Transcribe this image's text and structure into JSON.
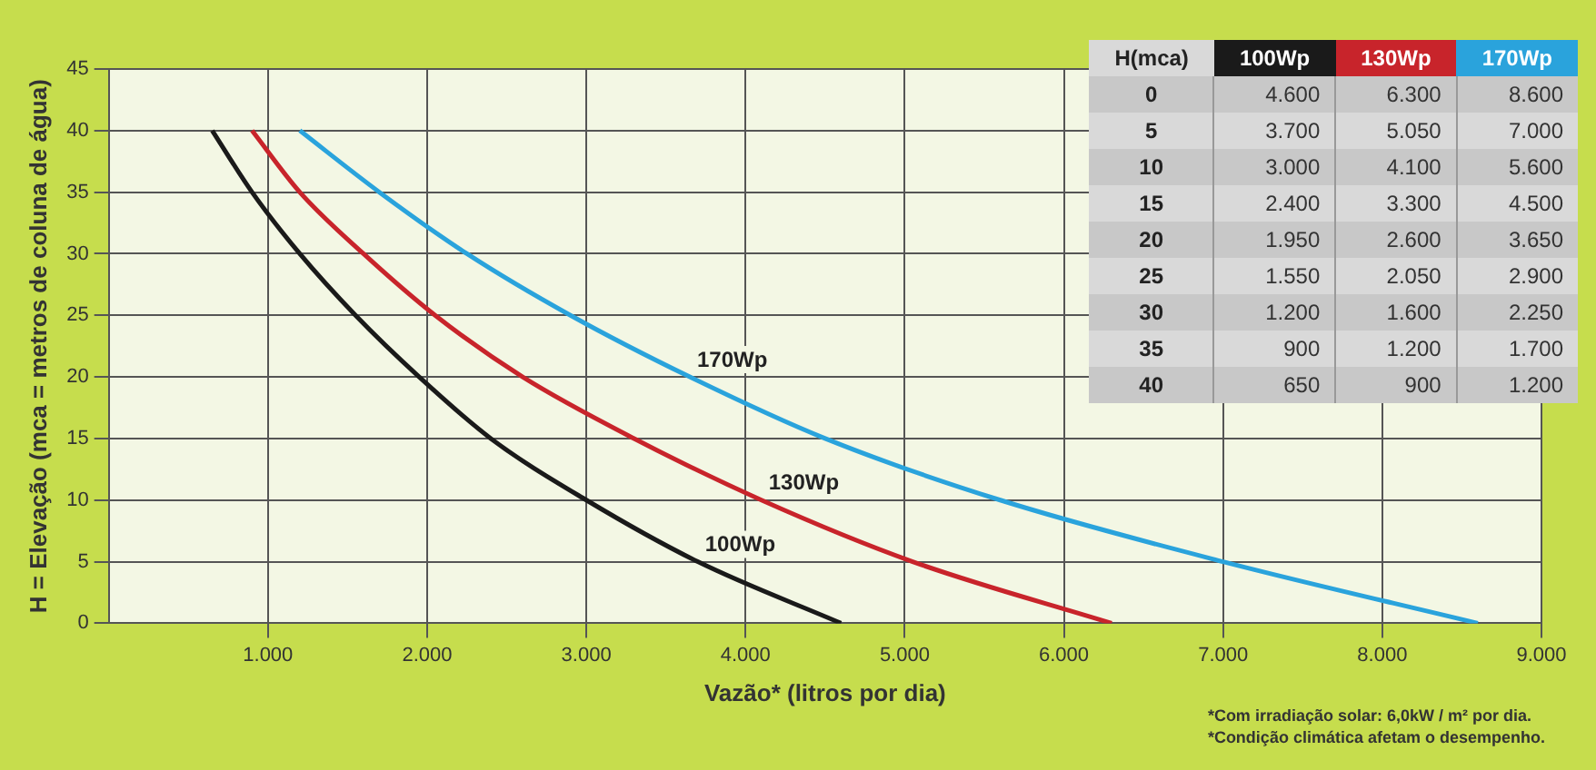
{
  "chart_data": [
    {
      "type": "line",
      "xlabel": "Vazão* (litros por dia)",
      "ylabel": "H = Elevação (mca = metros de coluna de água)",
      "series": [
        {
          "name": "100Wp",
          "color": "#1a1a1a",
          "x": [
            4600,
            3700,
            3000,
            2400,
            1950,
            1550,
            1200,
            900,
            650
          ],
          "values": [
            0,
            5,
            10,
            15,
            20,
            25,
            30,
            35,
            40
          ]
        },
        {
          "name": "130Wp",
          "color": "#c8242b",
          "x": [
            6300,
            5050,
            4100,
            3300,
            2600,
            2050,
            1600,
            1200,
            900
          ],
          "values": [
            0,
            5,
            10,
            15,
            20,
            25,
            30,
            35,
            40
          ]
        },
        {
          "name": "170Wp",
          "color": "#2aa3dc",
          "x": [
            8600,
            7000,
            5600,
            4500,
            3650,
            2900,
            2250,
            1700,
            1200
          ],
          "values": [
            0,
            5,
            10,
            15,
            20,
            25,
            30,
            35,
            40
          ]
        }
      ],
      "xlim": [
        0,
        9000
      ],
      "xticks": [
        {
          "value": 1000,
          "label": "1.000"
        },
        {
          "value": 2000,
          "label": "2.000"
        },
        {
          "value": 3000,
          "label": "3.000"
        },
        {
          "value": 4000,
          "label": "4.000"
        },
        {
          "value": 5000,
          "label": "5.000"
        },
        {
          "value": 6000,
          "label": "6.000"
        },
        {
          "value": 7000,
          "label": "7.000"
        },
        {
          "value": 8000,
          "label": "8.000"
        },
        {
          "value": 9000,
          "label": "9.000"
        }
      ],
      "ylim": [
        0,
        45
      ],
      "yticks": [
        0,
        5,
        10,
        15,
        20,
        25,
        30,
        35,
        40,
        45
      ],
      "grid": true,
      "marker": "none",
      "annotations": [
        "*Com irradiação solar: 6,0kW / m² por dia.",
        "*Condição climática afetam o desempenho."
      ]
    },
    {
      "type": "heatmap",
      "ylabel": "H(mca)",
      "categories": [
        "100Wp",
        "130Wp",
        "170Wp"
      ],
      "y_categories": [
        "0",
        "5",
        "10",
        "15",
        "20",
        "25",
        "30",
        "35",
        "40"
      ],
      "cells": [
        [
          4600,
          6300,
          8600
        ],
        [
          3700,
          5050,
          7000
        ],
        [
          3000,
          4100,
          5600
        ],
        [
          2400,
          3300,
          4500
        ],
        [
          1950,
          2600,
          3650
        ],
        [
          1550,
          2050,
          2900
        ],
        [
          1200,
          1600,
          2250
        ],
        [
          900,
          1200,
          1700
        ],
        [
          650,
          900,
          1200
        ]
      ],
      "cell_labels": [
        [
          "4.600",
          "6.300",
          "8.600"
        ],
        [
          "3.700",
          "5.050",
          "7.000"
        ],
        [
          "3.000",
          "4.100",
          "5.600"
        ],
        [
          "2.400",
          "3.300",
          "4.500"
        ],
        [
          "1.950",
          "2.600",
          "3.650"
        ],
        [
          "1.550",
          "2.050",
          "2.900"
        ],
        [
          "1.200",
          "1.600",
          "2.250"
        ],
        [
          "900",
          "1.200",
          "1.700"
        ],
        [
          "650",
          "900",
          "1.200"
        ]
      ]
    }
  ]
}
